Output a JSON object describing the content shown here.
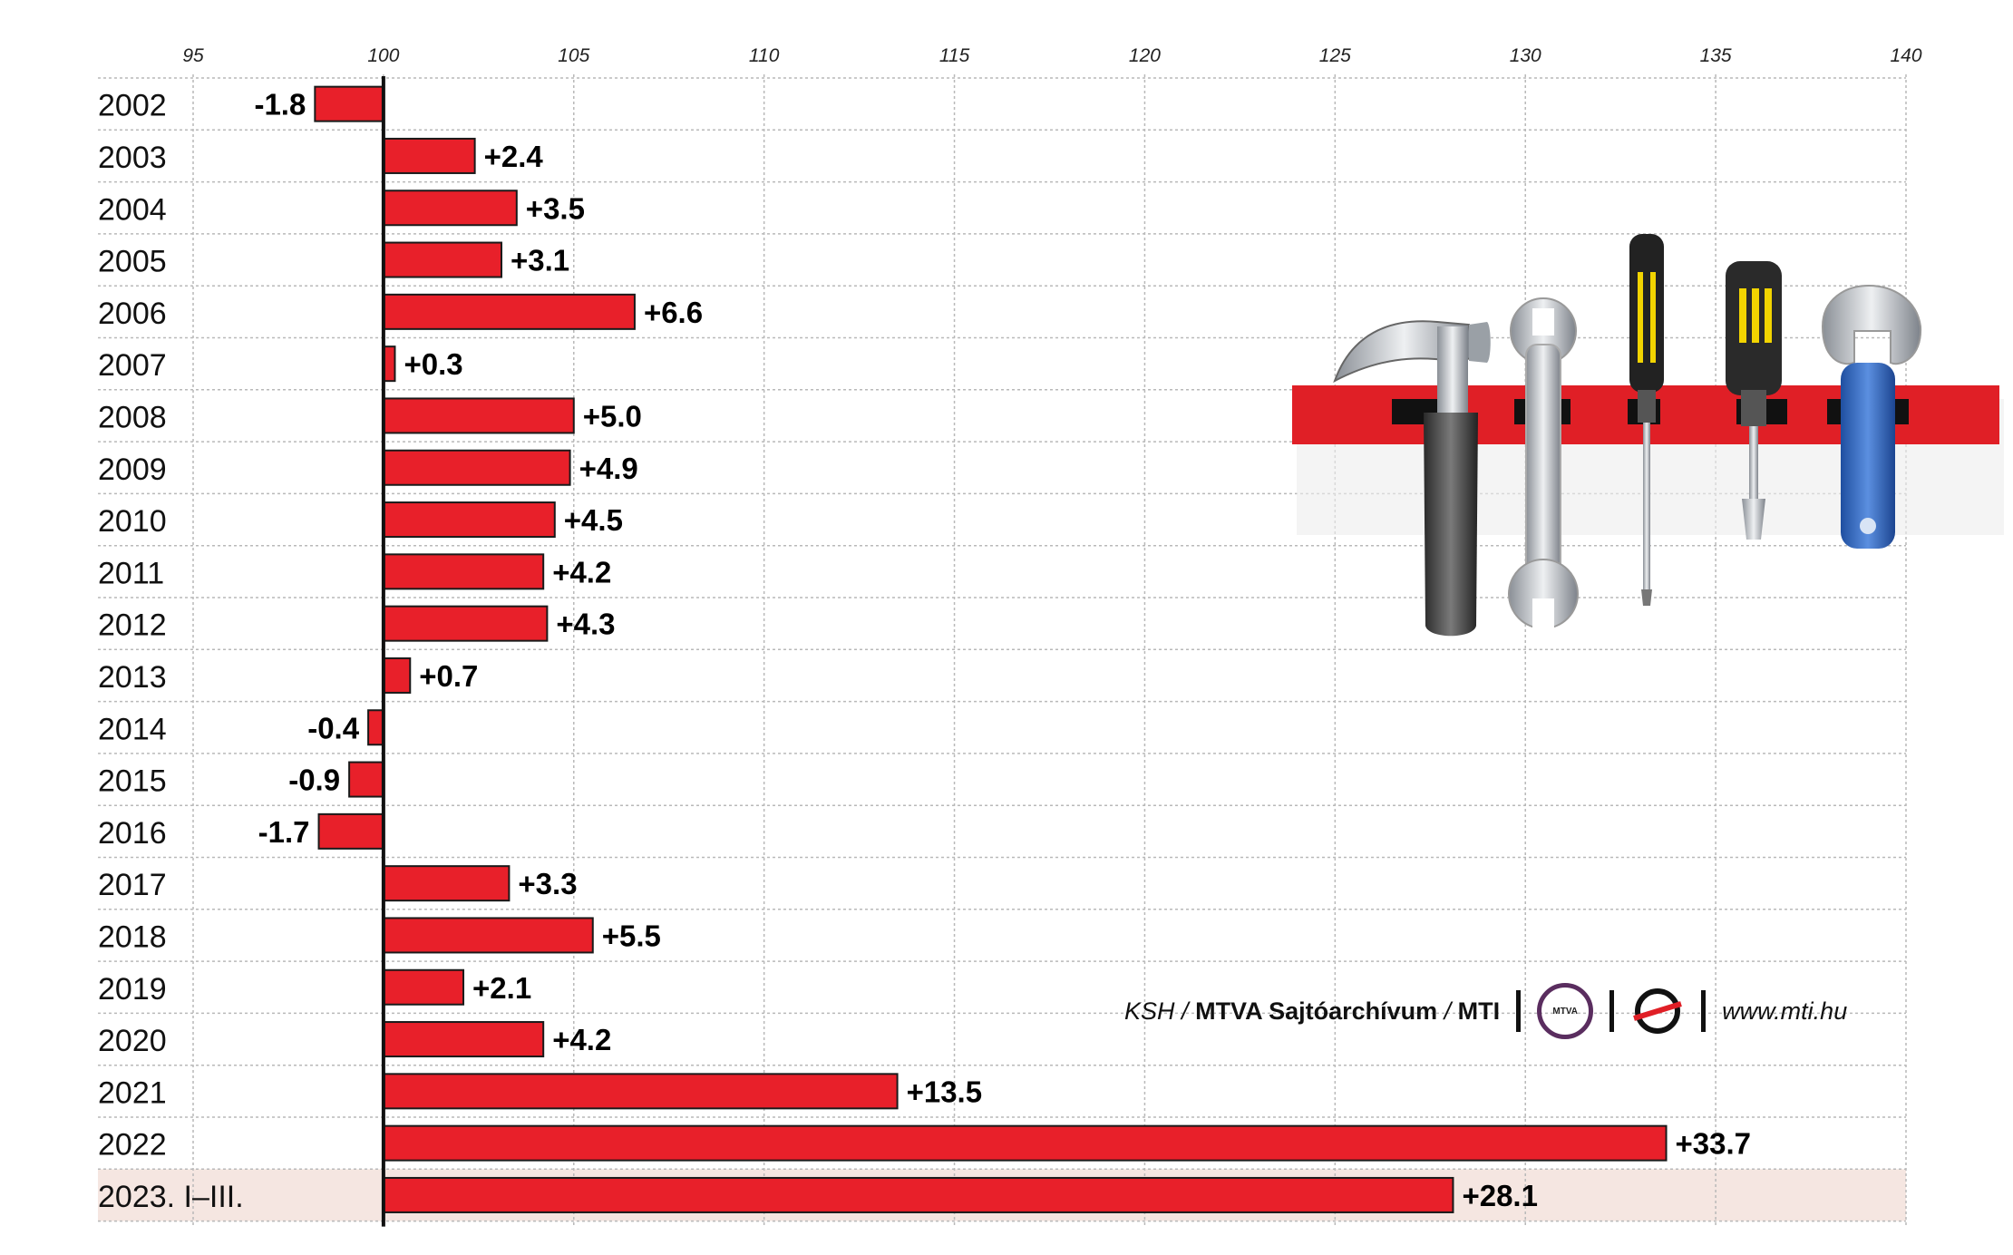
{
  "chart_data": {
    "type": "bar",
    "orientation": "horizontal",
    "baseline": 100,
    "xlim": [
      95,
      140
    ],
    "xticks": [
      "95",
      "100",
      "105",
      "110",
      "115",
      "120",
      "125",
      "130",
      "135",
      "140"
    ],
    "categories": [
      "2002",
      "2003",
      "2004",
      "2005",
      "2006",
      "2007",
      "2008",
      "2009",
      "2010",
      "2011",
      "2012",
      "2013",
      "2014",
      "2015",
      "2016",
      "2017",
      "2018",
      "2019",
      "2020",
      "2021",
      "2022",
      "2023. I–III."
    ],
    "values": [
      -1.8,
      2.4,
      3.5,
      3.1,
      6.6,
      0.3,
      5.0,
      4.9,
      4.5,
      4.2,
      4.3,
      0.7,
      -0.4,
      -0.9,
      -1.7,
      3.3,
      5.5,
      2.1,
      4.2,
      13.5,
      33.7,
      28.1
    ],
    "labels": [
      "-1.8",
      "+2.4",
      "+3.5",
      "+3.1",
      "+6.6",
      "+0.3",
      "+5.0",
      "+4.9",
      "+4.5",
      "+4.2",
      "+4.3",
      "+0.7",
      "-0.4",
      "-0.9",
      "-1.7",
      "+3.3",
      "+5.5",
      "+2.1",
      "+4.2",
      "+13.5",
      "+33.7",
      "+28.1"
    ],
    "highlight_category": "2023. I–III.",
    "grid": true,
    "colors": {
      "bar": "#e8202a",
      "bar_outline": "#1a1a1a",
      "grid": "#b9b9b9",
      "highlight_row": "#f5e6e1",
      "axis": "#111111"
    }
  },
  "credit": {
    "source": "KSH",
    "slash1": "/",
    "agency": "MTVA Sajtóarchívum",
    "slash2": "/",
    "mti": "MTI",
    "logo_text": "MTVA",
    "url": "www.mti.hu"
  },
  "illustration": {
    "icons": [
      "hammer-icon",
      "wrench-icon",
      "screwdriver-icon",
      "screwdriver-icon",
      "adjustable-wrench-icon"
    ]
  }
}
